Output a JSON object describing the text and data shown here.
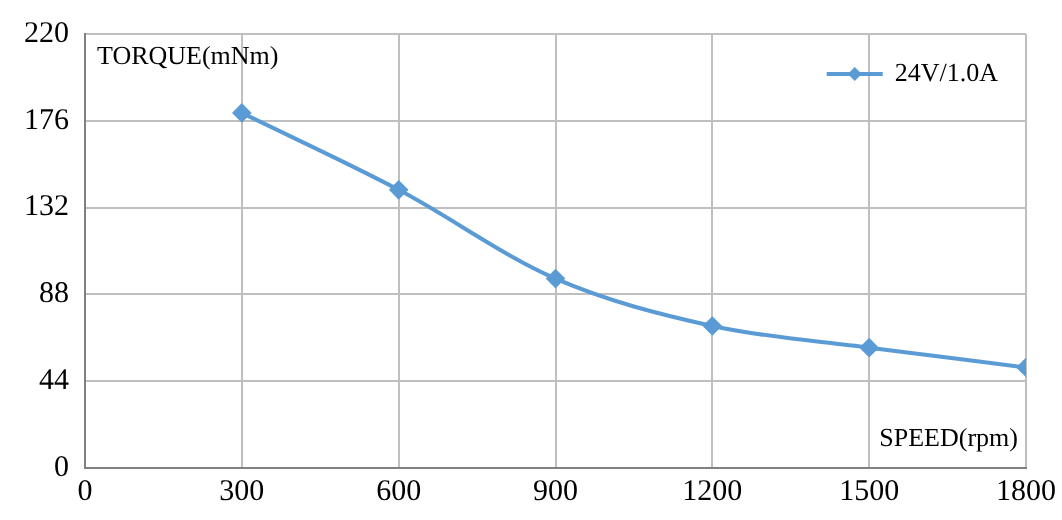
{
  "chart_data": {
    "type": "line",
    "xlabel": "SPEED(rpm)",
    "ylabel": "TORQUE(mNm)",
    "x": [
      300,
      600,
      900,
      1200,
      1500,
      1800
    ],
    "series": [
      {
        "name": "24V/1.0A",
        "color": "#5b9bd5",
        "values": [
          180,
          141,
          96,
          72,
          61,
          51
        ]
      }
    ],
    "xlim": [
      0,
      1800
    ],
    "xticks": [
      0,
      300,
      600,
      900,
      1200,
      1500,
      1800
    ],
    "ylim": [
      0,
      220
    ],
    "yticks": [
      0,
      44,
      88,
      132,
      176,
      220
    ],
    "grid": true,
    "legend": "top right",
    "marker": "diamond",
    "line_style": "solid"
  }
}
